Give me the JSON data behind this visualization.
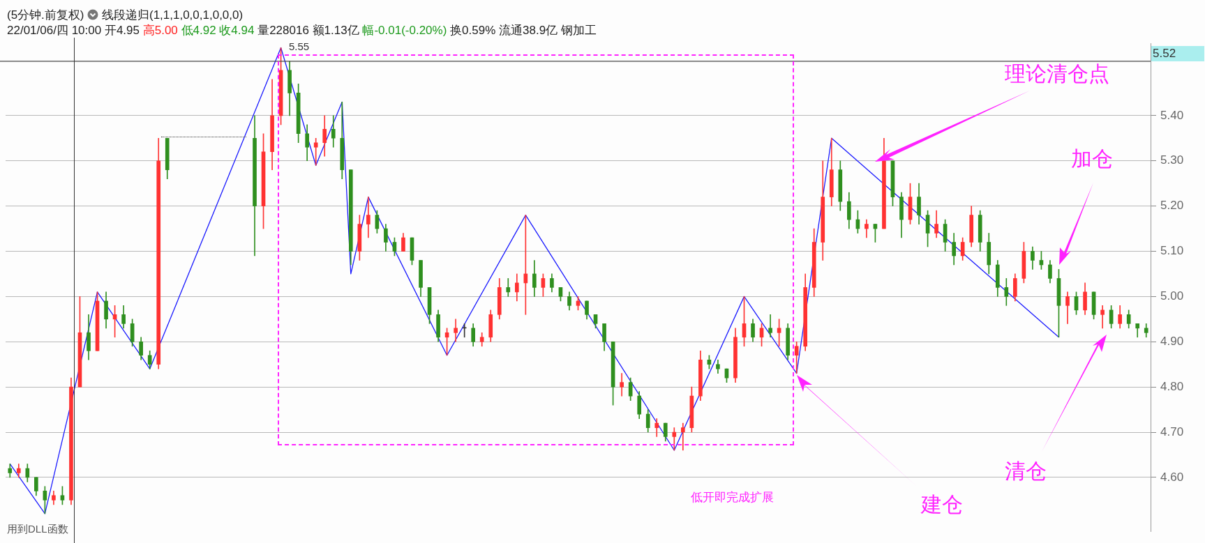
{
  "chart_data": {
    "type": "candlestick",
    "title": "(5分钟.前复权)",
    "subtitle": "22/01/06/四 10:00 开4.95 高5.00 低4.92 收4.94 量228016 额1.13亿 幅-0.01(-0.20%) 换0.59% 流通38.9亿 钢加工",
    "categories": [
      null,
      null,
      null,
      null,
      null,
      null,
      null,
      null,
      null,
      null,
      null,
      null,
      null,
      null,
      null,
      null,
      null,
      null,
      null,
      null,
      null,
      null,
      null,
      null,
      null,
      null,
      null,
      null,
      null,
      null,
      null,
      null,
      null,
      null,
      null,
      null,
      null,
      null,
      null,
      null,
      null,
      null,
      null,
      null,
      null,
      null,
      null,
      null,
      null,
      null,
      null,
      null,
      null,
      null,
      null,
      null,
      null,
      null,
      null,
      null,
      null,
      null,
      null,
      null,
      null,
      null,
      null,
      null,
      null,
      null,
      null,
      null,
      null,
      null,
      null,
      null,
      null,
      null,
      null,
      null,
      null,
      null,
      null,
      null,
      null,
      null,
      null,
      null,
      null,
      null,
      null,
      null,
      null,
      null,
      null,
      null,
      null,
      null,
      null,
      null,
      null,
      null,
      null,
      null,
      null,
      null,
      null,
      null,
      null,
      null,
      null,
      null,
      null,
      null,
      null,
      null,
      null,
      null,
      null,
      null,
      null,
      null,
      null,
      null,
      null,
      null,
      null,
      null,
      null,
      null,
      null
    ],
    "ohlc": [
      [
        4.62,
        4.63,
        4.6,
        4.61
      ],
      [
        4.61,
        4.63,
        4.6,
        4.62
      ],
      [
        4.62,
        4.63,
        4.59,
        4.6
      ],
      [
        4.6,
        4.6,
        4.56,
        4.57
      ],
      [
        4.57,
        4.58,
        4.52,
        4.55
      ],
      [
        4.55,
        4.57,
        4.54,
        4.56
      ],
      [
        4.56,
        4.58,
        4.54,
        4.55
      ],
      [
        4.55,
        4.82,
        4.54,
        4.8
      ],
      [
        4.8,
        5.0,
        4.8,
        4.92
      ],
      [
        4.92,
        4.96,
        4.86,
        4.88
      ],
      [
        4.88,
        5.01,
        4.88,
        4.99
      ],
      [
        4.99,
        5.01,
        4.93,
        4.95
      ],
      [
        4.95,
        4.98,
        4.91,
        4.96
      ],
      [
        4.96,
        4.98,
        4.93,
        4.94
      ],
      [
        4.94,
        4.95,
        4.89,
        4.9
      ],
      [
        4.9,
        4.91,
        4.86,
        4.87
      ],
      [
        4.87,
        4.88,
        4.84,
        4.85
      ],
      [
        4.85,
        5.35,
        4.84,
        5.3
      ],
      [
        5.35,
        5.35,
        5.26,
        5.28
      ],
      null,
      null,
      null,
      null,
      null,
      null,
      null,
      null,
      null,
      [
        5.35,
        5.4,
        5.09,
        5.2
      ],
      [
        5.2,
        5.36,
        5.15,
        5.32
      ],
      [
        5.32,
        5.48,
        5.28,
        5.4
      ],
      [
        5.4,
        5.55,
        5.38,
        5.5
      ],
      [
        5.5,
        5.52,
        5.4,
        5.45
      ],
      [
        5.45,
        5.47,
        5.34,
        5.36
      ],
      [
        5.36,
        5.38,
        5.3,
        5.33
      ],
      [
        5.33,
        5.35,
        5.29,
        5.34
      ],
      [
        5.34,
        5.4,
        5.31,
        5.37
      ],
      [
        5.37,
        5.4,
        5.33,
        5.35
      ],
      [
        5.35,
        5.43,
        5.26,
        5.28
      ],
      [
        5.28,
        5.28,
        5.07,
        5.1
      ],
      [
        5.1,
        5.18,
        5.08,
        5.16
      ],
      [
        5.16,
        5.22,
        5.13,
        5.18
      ],
      [
        5.18,
        5.19,
        5.14,
        5.15
      ],
      [
        5.15,
        5.16,
        5.1,
        5.12
      ],
      [
        5.12,
        5.13,
        5.09,
        5.1
      ],
      [
        5.1,
        5.14,
        5.1,
        5.13
      ],
      [
        5.13,
        5.13,
        5.07,
        5.08
      ],
      [
        5.08,
        5.08,
        5.0,
        5.02
      ],
      [
        5.02,
        5.02,
        4.94,
        4.96
      ],
      [
        4.96,
        4.97,
        4.9,
        4.91
      ],
      [
        4.91,
        4.93,
        4.87,
        4.92
      ],
      [
        4.92,
        4.95,
        4.9,
        4.93
      ],
      [
        4.93,
        4.94,
        4.91,
        4.93
      ],
      [
        4.93,
        4.94,
        4.89,
        4.9
      ],
      [
        4.9,
        4.92,
        4.89,
        4.91
      ],
      [
        4.91,
        4.97,
        4.9,
        4.96
      ],
      [
        4.96,
        5.04,
        4.95,
        5.02
      ],
      [
        5.02,
        5.04,
        5.0,
        5.01
      ],
      [
        5.01,
        5.05,
        4.99,
        5.03
      ],
      [
        5.03,
        5.18,
        4.96,
        5.05
      ],
      [
        5.05,
        5.08,
        5.0,
        5.02
      ],
      [
        5.02,
        5.05,
        5.0,
        5.04
      ],
      [
        5.04,
        5.05,
        5.01,
        5.02
      ],
      [
        5.02,
        5.02,
        4.99,
        5.0
      ],
      [
        5.0,
        5.01,
        4.97,
        4.98
      ],
      [
        4.98,
        5.0,
        4.97,
        4.99
      ],
      [
        4.99,
        4.99,
        4.95,
        4.96
      ],
      [
        4.96,
        4.96,
        4.93,
        4.94
      ],
      [
        4.94,
        4.94,
        4.88,
        4.9
      ],
      [
        4.9,
        4.9,
        4.76,
        4.8
      ],
      [
        4.8,
        4.83,
        4.78,
        4.81
      ],
      [
        4.81,
        4.82,
        4.77,
        4.78
      ],
      [
        4.78,
        4.79,
        4.73,
        4.74
      ],
      [
        4.74,
        4.75,
        4.7,
        4.71
      ],
      [
        4.71,
        4.73,
        4.69,
        4.72
      ],
      [
        4.72,
        4.72,
        4.68,
        4.69
      ],
      [
        4.69,
        4.71,
        4.66,
        4.7
      ],
      [
        4.7,
        4.72,
        4.66,
        4.71
      ],
      [
        4.71,
        4.8,
        4.7,
        4.78
      ],
      [
        4.78,
        4.88,
        4.77,
        4.86
      ],
      [
        4.86,
        4.87,
        4.84,
        4.85
      ],
      [
        4.85,
        4.86,
        4.83,
        4.84
      ],
      [
        4.84,
        4.84,
        4.81,
        4.82
      ],
      [
        4.82,
        4.93,
        4.81,
        4.91
      ],
      [
        4.91,
        5.0,
        4.89,
        4.94
      ],
      [
        4.94,
        4.95,
        4.9,
        4.91
      ],
      [
        4.91,
        4.94,
        4.89,
        4.93
      ],
      [
        4.93,
        4.96,
        4.91,
        4.92
      ],
      [
        4.92,
        4.95,
        4.89,
        4.93
      ],
      [
        4.93,
        4.94,
        4.86,
        4.87
      ],
      [
        4.87,
        4.9,
        4.83,
        4.89
      ],
      [
        4.89,
        5.05,
        4.88,
        5.02
      ],
      [
        5.02,
        5.15,
        5.0,
        5.12
      ],
      [
        5.12,
        5.3,
        5.08,
        5.22
      ],
      [
        5.22,
        5.35,
        5.2,
        5.28
      ],
      [
        5.28,
        5.3,
        5.19,
        5.21
      ],
      [
        5.21,
        5.23,
        5.15,
        5.17
      ],
      [
        5.17,
        5.19,
        5.14,
        5.15
      ],
      [
        5.15,
        5.17,
        5.13,
        5.16
      ],
      [
        5.16,
        5.16,
        5.12,
        5.15
      ],
      [
        5.15,
        5.35,
        5.15,
        5.3
      ],
      [
        5.3,
        5.3,
        5.2,
        5.22
      ],
      [
        5.22,
        5.23,
        5.13,
        5.17
      ],
      [
        5.17,
        5.25,
        5.16,
        5.22
      ],
      [
        5.22,
        5.25,
        5.16,
        5.18
      ],
      [
        5.18,
        5.19,
        5.11,
        5.14
      ],
      [
        5.14,
        5.19,
        5.13,
        5.16
      ],
      [
        5.16,
        5.17,
        5.1,
        5.12
      ],
      [
        5.12,
        5.14,
        5.07,
        5.09
      ],
      [
        5.09,
        5.13,
        5.08,
        5.12
      ],
      [
        5.12,
        5.2,
        5.11,
        5.18
      ],
      [
        5.18,
        5.19,
        5.1,
        5.12
      ],
      [
        5.12,
        5.14,
        5.05,
        5.07
      ],
      [
        5.07,
        5.08,
        5.0,
        5.02
      ],
      [
        5.02,
        5.04,
        4.98,
        5.0
      ],
      [
        5.0,
        5.05,
        4.99,
        5.04
      ],
      [
        5.04,
        5.12,
        5.03,
        5.1
      ],
      [
        5.1,
        5.11,
        5.06,
        5.08
      ],
      [
        5.08,
        5.1,
        5.06,
        5.07
      ],
      [
        5.07,
        5.08,
        5.03,
        5.04
      ],
      [
        5.04,
        5.06,
        4.91,
        4.98
      ],
      [
        4.98,
        5.01,
        4.94,
        5.0
      ],
      [
        5.0,
        5.01,
        4.96,
        4.97
      ],
      [
        4.97,
        5.03,
        4.96,
        5.01
      ],
      [
        5.01,
        5.01,
        4.95,
        4.96
      ],
      [
        4.96,
        4.98,
        4.93,
        4.97
      ],
      [
        4.97,
        4.98,
        4.93,
        4.94
      ],
      [
        4.94,
        4.98,
        4.93,
        4.96
      ],
      [
        4.96,
        4.97,
        4.93,
        4.94
      ],
      [
        4.94,
        4.94,
        4.91,
        4.93
      ],
      [
        4.93,
        4.94,
        4.91,
        4.92
      ]
    ],
    "colors": [
      "#2f8f1f",
      "#ff3232",
      "#2f8f1f",
      "#2f8f1f",
      "#2f8f1f",
      "#ff3232",
      "#2f8f1f",
      "#ff3232",
      "#ff3232",
      "#2f8f1f",
      "#ff3232",
      "#2f8f1f",
      "#ff3232",
      "#2f8f1f",
      "#2f8f1f",
      "#2f8f1f",
      "#2f8f1f",
      "#ff3232",
      "#2f8f1f",
      null,
      null,
      null,
      null,
      null,
      null,
      null,
      null,
      null,
      "#2f8f1f",
      "#ff3232",
      "#ff3232",
      "#ff3232",
      "#2f8f1f",
      "#2f8f1f",
      "#2f8f1f",
      "#ff3232",
      "#ff3232",
      "#2f8f1f",
      "#2f8f1f",
      "#2f8f1f",
      "#ff3232",
      "#ff3232",
      "#2f8f1f",
      "#2f8f1f",
      "#2f8f1f",
      "#ff3232",
      "#2f8f1f",
      "#2f8f1f",
      "#2f8f1f",
      "#2f8f1f",
      "#ff3232",
      "#ff3232",
      "#333333",
      "#2f8f1f",
      "#ff3232",
      "#ff3232",
      "#ff3232",
      "#2f8f1f",
      "#ff3232",
      "#ff3232",
      "#2f8f1f",
      "#ff3232",
      "#2f8f1f",
      "#2f8f1f",
      "#2f8f1f",
      "#ff3232",
      "#2f8f1f",
      "#2f8f1f",
      "#2f8f1f",
      "#2f8f1f",
      "#ff3232",
      "#2f8f1f",
      "#2f8f1f",
      "#2f8f1f",
      "#ff3232",
      "#2f8f1f",
      "#ff3232",
      "#ff3232",
      "#ff3232",
      "#ff3232",
      "#2f8f1f",
      "#2f8f1f",
      "#2f8f1f",
      "#ff3232",
      "#ff3232",
      "#2f8f1f",
      "#ff3232",
      "#2f8f1f",
      "#ff3232",
      "#2f8f1f",
      "#ff3232",
      "#ff3232",
      "#ff3232",
      "#ff3232",
      "#ff3232",
      "#2f8f1f",
      "#2f8f1f",
      "#2f8f1f",
      "#ff3232",
      "#2f8f1f",
      "#ff3232",
      "#2f8f1f",
      "#2f8f1f",
      "#ff3232",
      "#2f8f1f",
      "#2f8f1f",
      "#ff3232",
      "#2f8f1f",
      "#2f8f1f",
      "#ff3232",
      "#ff3232",
      "#2f8f1f",
      "#2f8f1f",
      "#2f8f1f",
      "#2f8f1f",
      "#ff3232",
      "#ff3232",
      "#2f8f1f",
      "#2f8f1f",
      "#2f8f1f",
      "#2f8f1f",
      "#ff3232",
      "#2f8f1f",
      "#ff3232",
      "#2f8f1f",
      "#ff3232",
      "#2f8f1f",
      "#ff3232",
      "#2f8f1f",
      "#2f8f1f",
      "#2f8f1f"
    ],
    "series": [
      {
        "type": "line",
        "color": "#1a1aff",
        "values": [
          4.63,
          null,
          null,
          null,
          4.52,
          null,
          null,
          null,
          null,
          null,
          5.01,
          null,
          null,
          null,
          null,
          null,
          4.84,
          null,
          null,
          null,
          null,
          null,
          null,
          null,
          null,
          null,
          null,
          null,
          null,
          null,
          null,
          5.55,
          null,
          null,
          null,
          5.29,
          null,
          null,
          5.43,
          5.05,
          null,
          5.22,
          null,
          null,
          null,
          null,
          null,
          null,
          null,
          null,
          4.87,
          null,
          null,
          null,
          null,
          null,
          null,
          null,
          null,
          5.18,
          null,
          null,
          null,
          null,
          null,
          null,
          null,
          null,
          null,
          null,
          null,
          null,
          null,
          null,
          null,
          null,
          4.66,
          null,
          null,
          null,
          null,
          null,
          null,
          null,
          5.0,
          null,
          null,
          null,
          null,
          null,
          4.83,
          null,
          null,
          null,
          5.35,
          null,
          null,
          null,
          null,
          null,
          null,
          null,
          null,
          null,
          null,
          null,
          null,
          null,
          null,
          null,
          null,
          null,
          null,
          null,
          null,
          null,
          null,
          null,
          null,
          null,
          4.91,
          null,
          null,
          null,
          null,
          null,
          null,
          null,
          null,
          null,
          null
        ]
      }
    ],
    "ylim": [
      4.48,
      5.56
    ],
    "yticks": [
      {
        "value": 4.6,
        "label": "4.60"
      },
      {
        "value": 4.7,
        "label": "4.70"
      },
      {
        "value": 4.8,
        "label": "4.80"
      },
      {
        "value": 4.9,
        "label": "4.90"
      },
      {
        "value": 5.0,
        "label": "5.00"
      },
      {
        "value": 5.1,
        "label": "5.10"
      },
      {
        "value": 5.2,
        "label": "5.20"
      },
      {
        "value": 5.3,
        "label": "5.30"
      },
      {
        "value": 5.4,
        "label": "5.40"
      }
    ],
    "grid": "y",
    "ref_lines": [
      {
        "axis": "y",
        "value": 5.52,
        "label": "5.52",
        "color": "#444444"
      }
    ],
    "annotations": [
      "线段递归(1,1,1,0,0,1,0,0,0)",
      "5.55",
      "理论清仓点",
      "加仓",
      "清仓",
      "建仓",
      "低开即完成扩展",
      "用到DLL函数"
    ]
  }
}
